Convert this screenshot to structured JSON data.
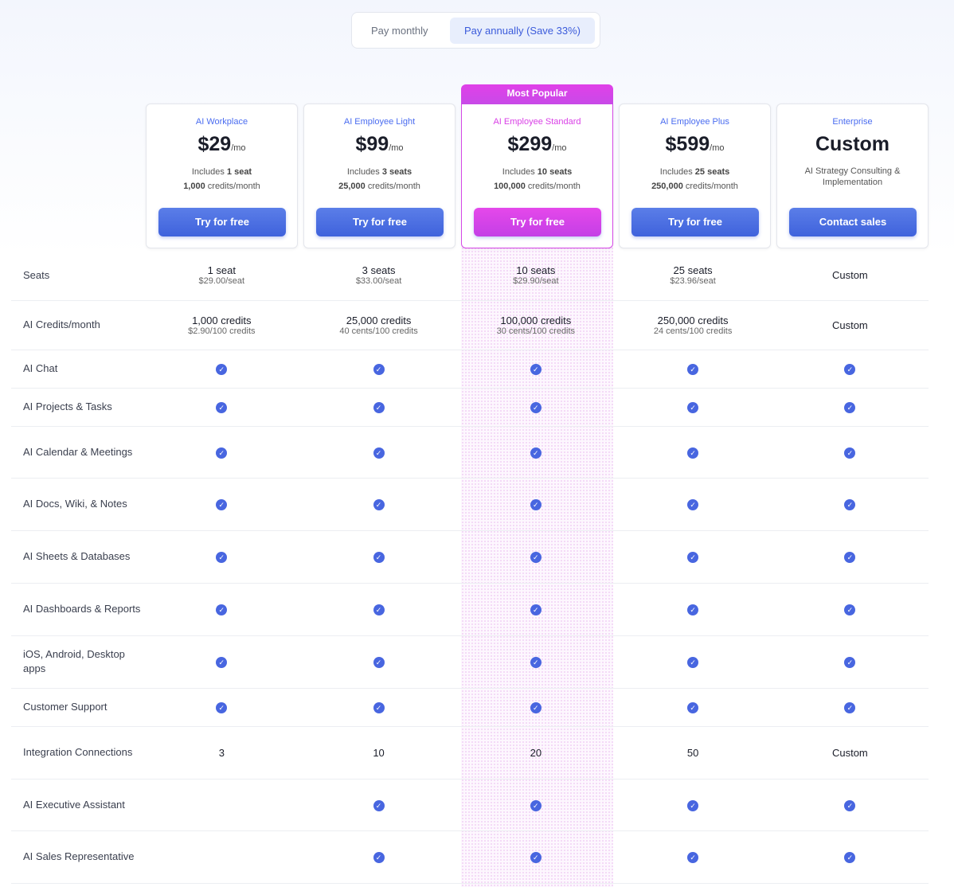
{
  "billing_toggle": {
    "monthly": "Pay monthly",
    "annually": "Pay annually (Save 33%)",
    "selected": "annually"
  },
  "popular_badge": "Most Popular",
  "plans": [
    {
      "name": "AI Workplace",
      "price": "$29",
      "per": "/mo",
      "inc_pre": "Includes ",
      "inc_bold": "1 seat",
      "credits_bold": "1,000",
      "credits_rest": " credits/month",
      "cta": "Try for free"
    },
    {
      "name": "AI Employee Light",
      "price": "$99",
      "per": "/mo",
      "inc_pre": "Includes ",
      "inc_bold": "3 seats",
      "credits_bold": "25,000",
      "credits_rest": " credits/month",
      "cta": "Try for free"
    },
    {
      "name": "AI Employee Standard",
      "price": "$299",
      "per": "/mo",
      "inc_pre": "Includes ",
      "inc_bold": "10 seats",
      "credits_bold": "100,000",
      "credits_rest": " credits/month",
      "cta": "Try for free"
    },
    {
      "name": "AI Employee Plus",
      "price": "$599",
      "per": "/mo",
      "inc_pre": "Includes ",
      "inc_bold": "25 seats",
      "credits_bold": "250,000",
      "credits_rest": " credits/month",
      "cta": "Try for free"
    },
    {
      "name": "Enterprise",
      "price": "Custom",
      "description": "AI Strategy Consulting & Implementation",
      "cta": "Contact sales"
    }
  ],
  "rows": [
    {
      "label": "Seats",
      "cells": [
        {
          "main": "1 seat",
          "sub": "$29.00/seat"
        },
        {
          "main": "3 seats",
          "sub": "$33.00/seat"
        },
        {
          "main": "10 seats",
          "sub": "$29.90/seat"
        },
        {
          "main": "25 seats",
          "sub": "$23.96/seat"
        },
        {
          "main": "Custom"
        }
      ]
    },
    {
      "label": "AI Credits/month",
      "cells": [
        {
          "main": "1,000 credits",
          "sub": "$2.90/100 credits"
        },
        {
          "main": "25,000 credits",
          "sub": "40 cents/100 credits"
        },
        {
          "main": "100,000 credits",
          "sub": "30 cents/100 credits"
        },
        {
          "main": "250,000 credits",
          "sub": "24 cents/100 credits"
        },
        {
          "main": "Custom"
        }
      ]
    },
    {
      "label": "AI Chat",
      "checks": [
        true,
        true,
        true,
        true,
        true
      ]
    },
    {
      "label": "AI Projects & Tasks",
      "checks": [
        true,
        true,
        true,
        true,
        true
      ]
    },
    {
      "label": "AI Calendar & Meetings",
      "checks": [
        true,
        true,
        true,
        true,
        true
      ]
    },
    {
      "label": "AI Docs, Wiki, & Notes",
      "checks": [
        true,
        true,
        true,
        true,
        true
      ]
    },
    {
      "label": "AI Sheets & Databases",
      "checks": [
        true,
        true,
        true,
        true,
        true
      ]
    },
    {
      "label": "AI Dashboards & Reports",
      "checks": [
        true,
        true,
        true,
        true,
        true
      ]
    },
    {
      "label": "iOS, Android, Desktop apps",
      "checks": [
        true,
        true,
        true,
        true,
        true
      ]
    },
    {
      "label": "Customer Support",
      "checks": [
        true,
        true,
        true,
        true,
        true
      ]
    },
    {
      "label": "Integration Connections",
      "cells": [
        {
          "main": "3"
        },
        {
          "main": "10"
        },
        {
          "main": "20"
        },
        {
          "main": "50"
        },
        {
          "main": "Custom"
        }
      ]
    },
    {
      "label": "AI Executive Assistant",
      "checks": [
        false,
        true,
        true,
        true,
        true
      ]
    },
    {
      "label": "AI Sales Representative",
      "checks": [
        false,
        true,
        true,
        true,
        true
      ]
    }
  ]
}
